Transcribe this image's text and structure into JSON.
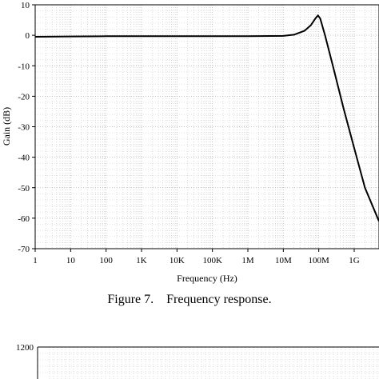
{
  "chart_data": [
    {
      "type": "line",
      "xlabel": "Frequency (Hz)",
      "ylabel": "Gain (dB)",
      "x_scale": "log",
      "xlim": [
        1,
        5000000000
      ],
      "ylim": [
        -70,
        10
      ],
      "x_ticks": [
        {
          "value": 1,
          "label": "1"
        },
        {
          "value": 10,
          "label": "10"
        },
        {
          "value": 100,
          "label": "100"
        },
        {
          "value": 1000,
          "label": "1K"
        },
        {
          "value": 10000,
          "label": "10K"
        },
        {
          "value": 100000,
          "label": "100K"
        },
        {
          "value": 1000000,
          "label": "1M"
        },
        {
          "value": 10000000,
          "label": "10M"
        },
        {
          "value": 100000000,
          "label": "100M"
        },
        {
          "value": 1000000000,
          "label": "1G"
        }
      ],
      "y_ticks": [
        10,
        0,
        -10,
        -20,
        -30,
        -40,
        -50,
        -60,
        -70
      ],
      "grid": true,
      "series": [
        {
          "color": "#000000",
          "x": [
            1,
            10,
            100,
            1000,
            10000,
            100000,
            1000000,
            10000000,
            20000000,
            40000000,
            60000000,
            80000000,
            95000000,
            110000000,
            150000000,
            250000000,
            500000000,
            1000000000,
            2000000000,
            5000000000
          ],
          "y": [
            -0.5,
            -0.4,
            -0.3,
            -0.3,
            -0.3,
            -0.3,
            -0.3,
            -0.2,
            0.2,
            1.5,
            3.3,
            5.5,
            6.5,
            5.5,
            0,
            -10,
            -24,
            -37,
            -50,
            -61
          ]
        }
      ]
    },
    {
      "type": "line",
      "y_ticks_visible": [
        "1200"
      ],
      "grid": true,
      "series": []
    }
  ],
  "caption": "Figure 7.    Frequency response."
}
